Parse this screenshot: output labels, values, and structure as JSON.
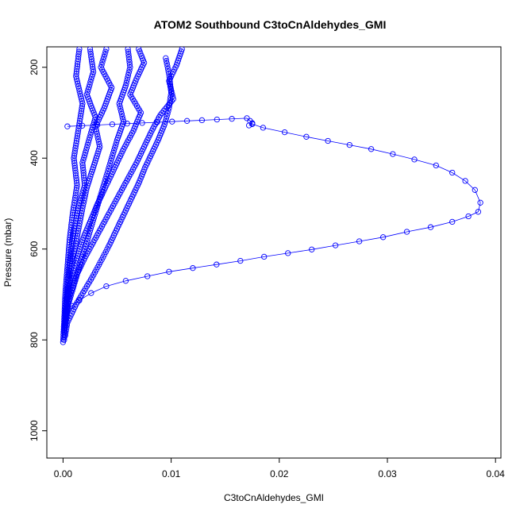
{
  "chart_data": {
    "type": "scatter",
    "title": "ATOM2 Southbound C3toCnAldehydes_GMI",
    "xlabel": "C3toCnAldehydes_GMI",
    "ylabel": "Pressure (mbar)",
    "xlim": [
      -0.0015,
      0.0405
    ],
    "ylim": [
      1060,
      155
    ],
    "y_reversed": true,
    "x_ticks": [
      0.0,
      0.01,
      0.02,
      0.03,
      0.04
    ],
    "x_tick_labels": [
      "0.00",
      "0.01",
      "0.02",
      "0.03",
      "0.04"
    ],
    "y_ticks": [
      200,
      400,
      600,
      800,
      1000
    ],
    "y_tick_labels": [
      "200",
      "400",
      "600",
      "800",
      "1000"
    ],
    "grid": false,
    "marker": "open-circle",
    "color": "#0000ff",
    "series": [
      {
        "x": [
          0.0004,
          0.017,
          0.0173,
          0.0175,
          0.0172,
          0.0175,
          0.0185,
          0.0205,
          0.0225,
          0.0245,
          0.0265,
          0.0285,
          0.0305,
          0.0325,
          0.0345,
          0.036,
          0.0372,
          0.0381,
          0.0386,
          0.0384,
          0.0375,
          0.036,
          0.034,
          0.0318,
          0.0296,
          0.0274,
          0.0252,
          0.023,
          0.0208,
          0.0186,
          0.0164,
          0.0142,
          0.012,
          0.0098,
          0.0078,
          0.0058,
          0.004,
          0.0026,
          0.0015,
          0.0008,
          0.0003
        ],
        "y": [
          330,
          312,
          318,
          323,
          328,
          325,
          333,
          343,
          353,
          362,
          371,
          380,
          391,
          403,
          416,
          432,
          450,
          470,
          498,
          518,
          528,
          540,
          552,
          562,
          574,
          583,
          592,
          601,
          609,
          617,
          626,
          634,
          642,
          650,
          660,
          670,
          682,
          697,
          713,
          725,
          740
        ]
      },
      {
        "x": [
          0.0095,
          0.0098,
          0.01,
          0.0098,
          0.0094,
          0.0088,
          0.0082,
          0.0076,
          0.007,
          0.0064,
          0.0058,
          0.0052,
          0.0047,
          0.0042,
          0.0037,
          0.0032,
          0.0027,
          0.0022,
          0.0017,
          0.0012,
          0.0008,
          0.0004,
          0.0002
        ],
        "y": [
          180,
          215,
          255,
          290,
          325,
          360,
          390,
          420,
          455,
          485,
          515,
          545,
          570,
          595,
          618,
          640,
          662,
          682,
          702,
          722,
          742,
          762,
          790
        ]
      },
      {
        "x": [
          0.006,
          0.0062,
          0.0058,
          0.0052,
          0.0056,
          0.005,
          0.0045,
          0.004,
          0.0035,
          0.003,
          0.0025,
          0.002,
          0.0015,
          0.001,
          0.0005,
          0.0002
        ],
        "y": [
          160,
          200,
          240,
          280,
          320,
          360,
          400,
          440,
          480,
          520,
          560,
          600,
          640,
          680,
          720,
          770
        ]
      },
      {
        "x": [
          0.004,
          0.0035,
          0.0045,
          0.0038,
          0.003,
          0.0034,
          0.0028,
          0.0022,
          0.0018,
          0.0014,
          0.001,
          0.0006,
          0.0003,
          0.0001
        ],
        "y": [
          160,
          200,
          245,
          290,
          330,
          375,
          420,
          465,
          510,
          560,
          610,
          660,
          710,
          780
        ]
      },
      {
        "x": [
          0.011,
          0.0105,
          0.0098,
          0.0102,
          0.009,
          0.0082,
          0.0075,
          0.0068,
          0.006,
          0.0052,
          0.0044,
          0.0036,
          0.0028,
          0.002,
          0.0012,
          0.0006,
          0.0002
        ],
        "y": [
          160,
          195,
          230,
          270,
          305,
          340,
          375,
          410,
          445,
          480,
          515,
          550,
          585,
          620,
          660,
          705,
          760
        ]
      },
      {
        "x": [
          0.0025,
          0.0028,
          0.0022,
          0.003,
          0.0024,
          0.0018,
          0.002,
          0.0014,
          0.001,
          0.0007,
          0.0004,
          0.0001
        ],
        "y": [
          160,
          210,
          260,
          310,
          360,
          410,
          460,
          510,
          560,
          610,
          680,
          800
        ]
      },
      {
        "x": [
          0.007,
          0.0075,
          0.0068,
          0.0062,
          0.0072,
          0.0065,
          0.0056,
          0.0048,
          0.004,
          0.0032,
          0.0025,
          0.0018,
          0.0012,
          0.0006,
          0.0002
        ],
        "y": [
          160,
          190,
          225,
          260,
          300,
          340,
          380,
          420,
          460,
          500,
          540,
          580,
          625,
          675,
          740
        ]
      },
      {
        "x": [
          0.0015,
          0.0012,
          0.0018,
          0.0014,
          0.001,
          0.0013,
          0.0009,
          0.0006,
          0.0004,
          0.0002,
          0.0001,
          0.0
        ],
        "y": [
          160,
          220,
          280,
          340,
          400,
          460,
          520,
          580,
          640,
          700,
          760,
          805
        ]
      }
    ]
  }
}
